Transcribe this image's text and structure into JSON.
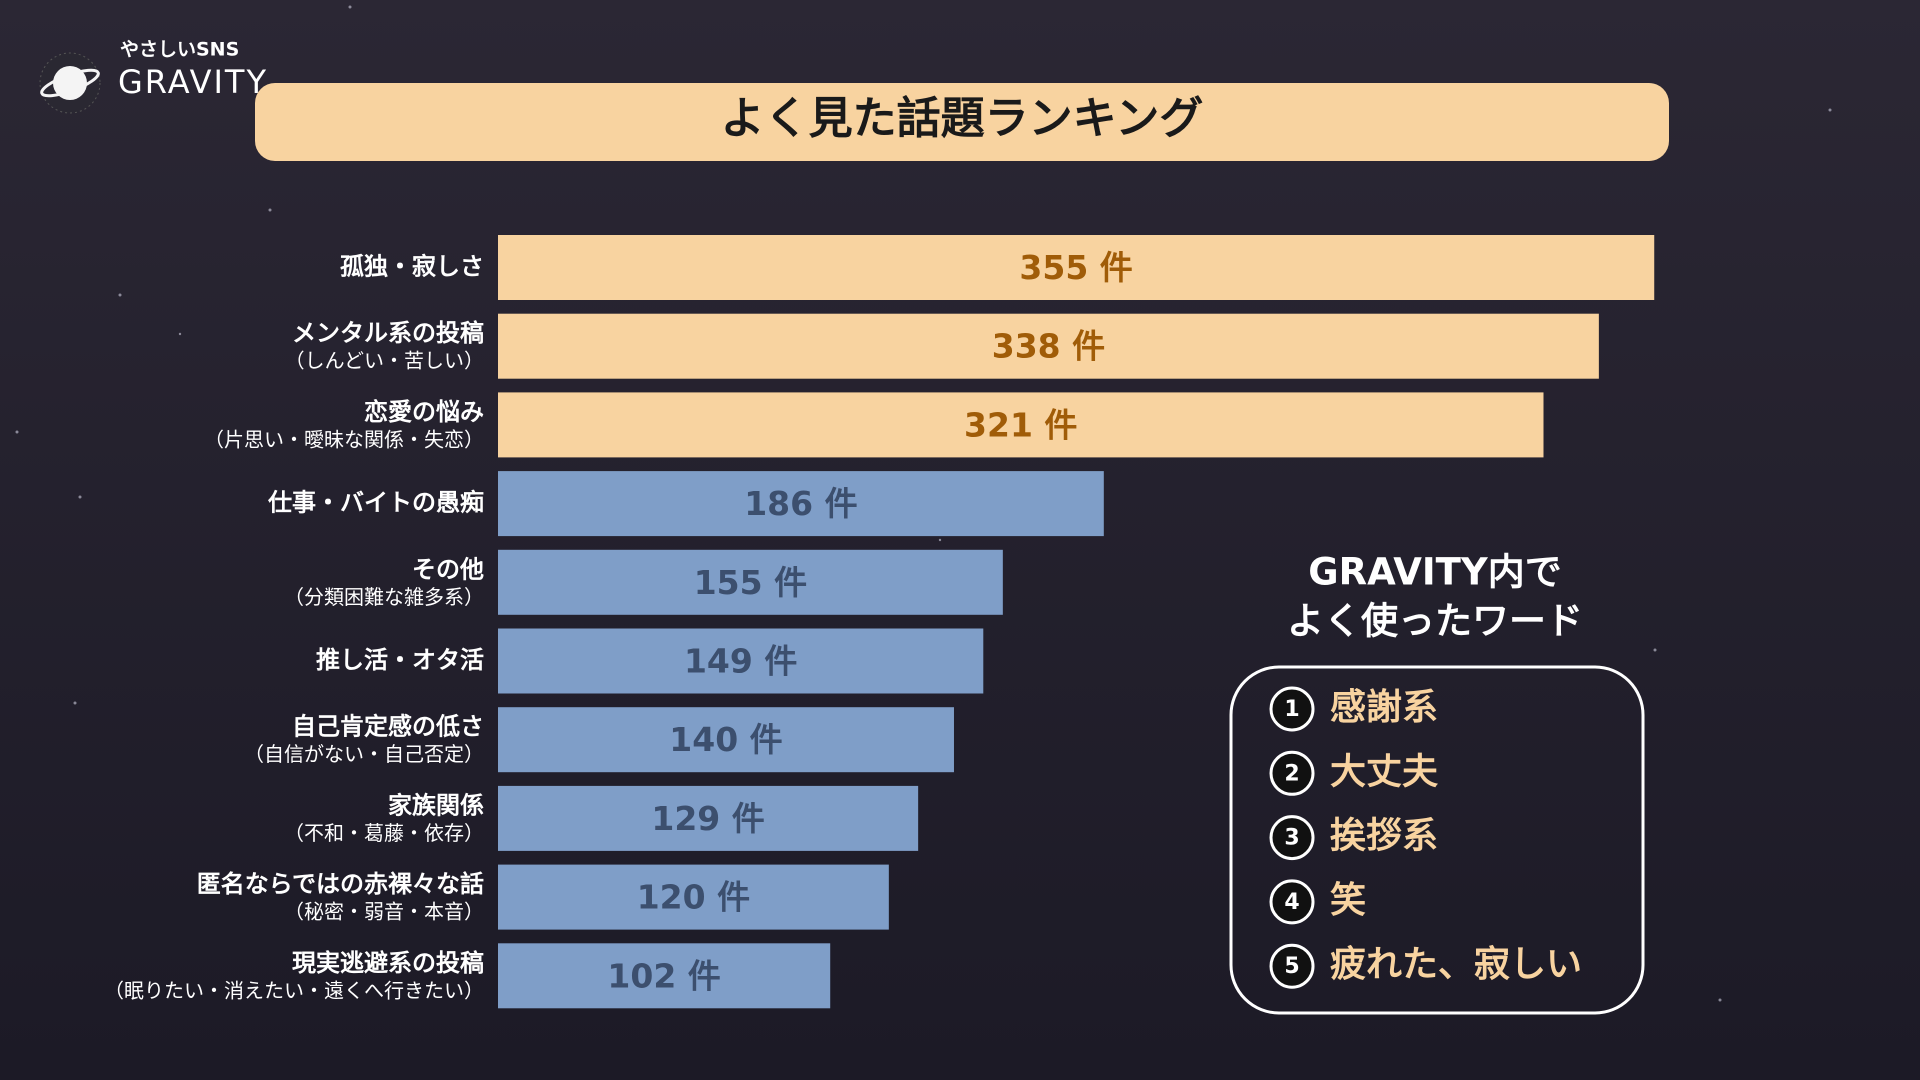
{
  "logo": {
    "tagline": "やさしいSNS",
    "name": "GRAVITY"
  },
  "chart_data": {
    "type": "hbar",
    "title": "よく見た話題ランキング",
    "categories": [
      "孤独・寂しさ",
      "メンタル系の投稿",
      "恋愛の悩み",
      "仕事・バイトの愚痴",
      "その他",
      "推し活・オタ活",
      "自己肯定感の低さ",
      "家族関係",
      "匿名ならではの赤裸々な話",
      "現実逃避系の投稿"
    ],
    "sublabels": [
      null,
      "（しんどい・苦しい）",
      "（片思い・曖昧な関係・失恋）",
      null,
      "（分類困難な雑多系）",
      null,
      "（自信がない・自己否定）",
      "（不和・葛藤・依存）",
      "（秘密・弱音・本音）",
      "（眠りたい・消えたい・遠くへ行きたい）"
    ],
    "values": [
      355,
      338,
      321,
      186,
      155,
      149,
      140,
      129,
      120,
      102
    ],
    "value_labels": [
      "355 件",
      "338 件",
      "321 件",
      "186 件",
      "155 件",
      "149 件",
      "140 件",
      "129 件",
      "120 件",
      "102 件"
    ],
    "bar_colors": [
      "#f8d3a0",
      "#f8d3a0",
      "#f8d3a0",
      "#7f9ec8",
      "#7f9ec8",
      "#7f9ec8",
      "#7f9ec8",
      "#7f9ec8",
      "#7f9ec8",
      "#7f9ec8"
    ],
    "label_colors": [
      "#a05c08",
      "#a05c08",
      "#a05c08",
      "#3c4f6e",
      "#3c4f6e",
      "#3c4f6e",
      "#3c4f6e",
      "#3c4f6e",
      "#3c4f6e",
      "#3c4f6e"
    ]
  },
  "word_panel": {
    "title": [
      "GRAVITY内で",
      "よく使ったワード"
    ],
    "items": [
      {
        "rank": "1",
        "word": "感謝系"
      },
      {
        "rank": "2",
        "word": "大丈夫"
      },
      {
        "rank": "3",
        "word": "挨拶系"
      },
      {
        "rank": "4",
        "word": "笑"
      },
      {
        "rank": "5",
        "word": "疲れた、寂しい"
      }
    ]
  }
}
